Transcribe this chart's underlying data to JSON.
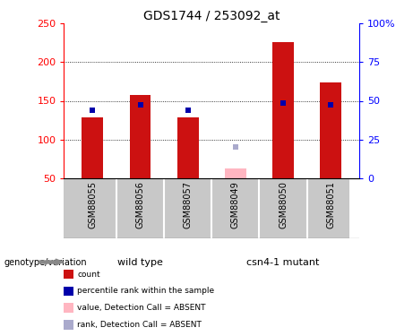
{
  "title": "GDS1744 / 253092_at",
  "samples": [
    "GSM88055",
    "GSM88056",
    "GSM88057",
    "GSM88049",
    "GSM88050",
    "GSM88051"
  ],
  "group_labels": [
    "wild type",
    "csn4-1 mutant"
  ],
  "count_values": [
    128,
    158,
    128,
    null,
    226,
    174
  ],
  "rank_values": [
    138,
    145,
    138,
    null,
    147,
    145
  ],
  "absent_value": 62,
  "absent_rank": 90,
  "absent_index": 3,
  "ylim_left": [
    50,
    250
  ],
  "ylim_right": [
    0,
    100
  ],
  "yticks_left": [
    50,
    100,
    150,
    200,
    250
  ],
  "yticks_right": [
    0,
    25,
    50,
    75,
    100
  ],
  "ytick_labels_right": [
    "0",
    "25",
    "50",
    "75",
    "100%"
  ],
  "bar_color": "#CC1111",
  "rank_color": "#0000AA",
  "absent_bar_color": "#FFB6C1",
  "absent_rank_color": "#AAAACC",
  "grid_color": "black",
  "sample_label_bg": "#C8C8C8",
  "green": "#66EE66",
  "plot_bg": "white",
  "legend_items": [
    {
      "label": "count",
      "color": "#CC1111"
    },
    {
      "label": "percentile rank within the sample",
      "color": "#0000AA"
    },
    {
      "label": "value, Detection Call = ABSENT",
      "color": "#FFB6C1"
    },
    {
      "label": "rank, Detection Call = ABSENT",
      "color": "#AAAACC"
    }
  ],
  "genotype_label": "genotype/variation",
  "bar_width": 0.45
}
